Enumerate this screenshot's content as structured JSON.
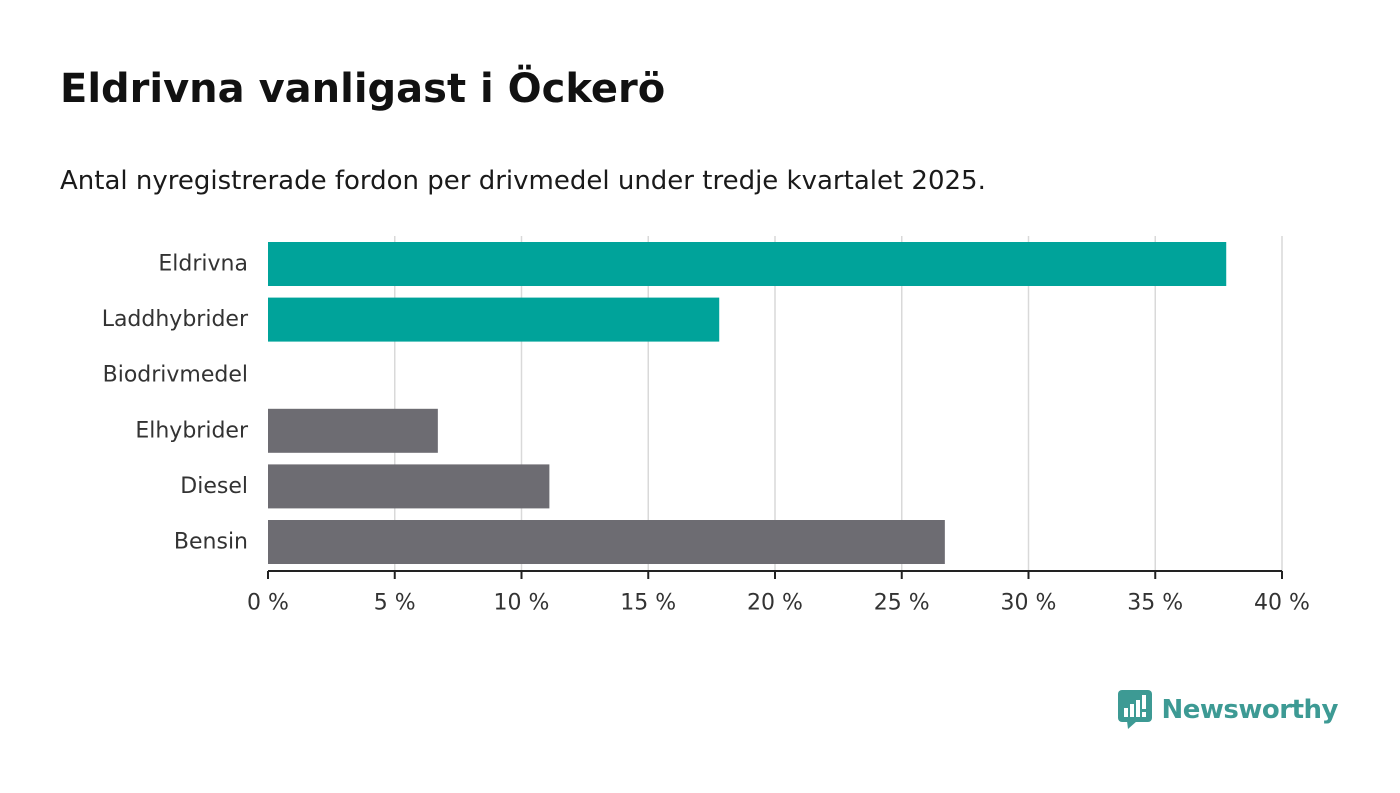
{
  "title": "Eldrivna vanligast i Öckerö",
  "subtitle": "Antal nyregistrerade fordon per drivmedel under tredje kvartalet 2025.",
  "colors": {
    "electrified": "#00a39a",
    "other": "#6d6c72",
    "grid": "#d9d9d9",
    "axis": "#222222",
    "brand": "#3d9a94"
  },
  "brand": {
    "name": "Newsworthy",
    "icon": "bar-chart-speech-bubble-icon"
  },
  "chart_data": {
    "type": "bar",
    "orientation": "horizontal",
    "categories": [
      "Eldrivna",
      "Laddhybrider",
      "Biodrivmedel",
      "Elhybrider",
      "Diesel",
      "Bensin"
    ],
    "values": [
      37.8,
      17.8,
      0,
      6.7,
      11.1,
      26.7
    ],
    "groups": [
      "electrified",
      "electrified",
      "electrified",
      "other",
      "other",
      "other"
    ],
    "xlim": [
      0,
      40
    ],
    "ticks": [
      0,
      5,
      10,
      15,
      20,
      25,
      30,
      35,
      40
    ],
    "tick_labels": [
      "0 %",
      "5 %",
      "10 %",
      "15 %",
      "20 %",
      "25 %",
      "30 %",
      "35 %",
      "40 %"
    ],
    "xlabel": "",
    "ylabel": "",
    "grid": true,
    "unit": "%"
  }
}
